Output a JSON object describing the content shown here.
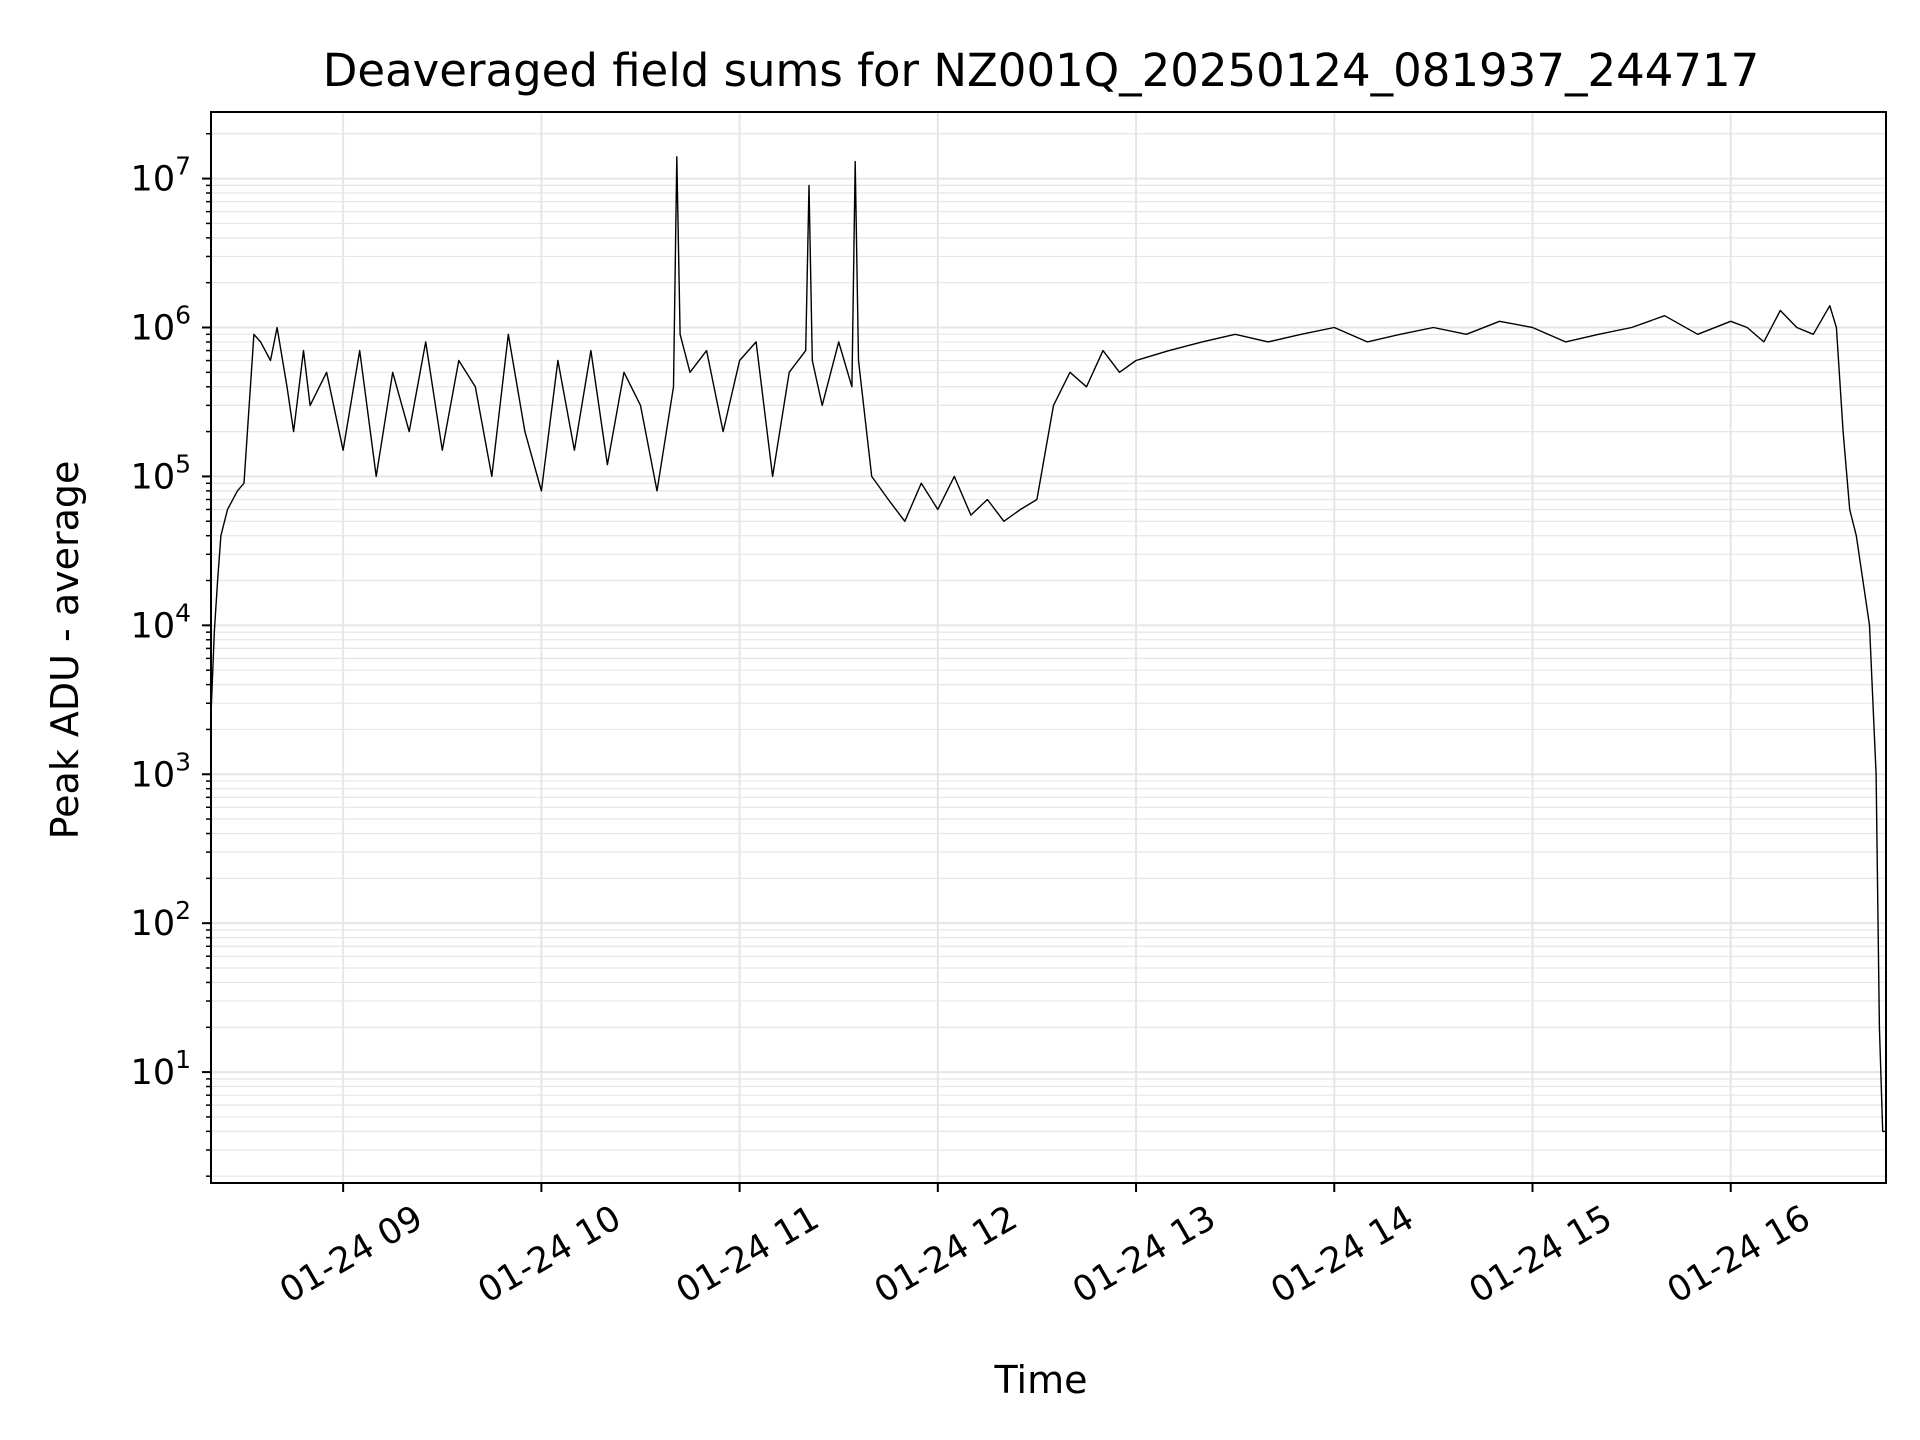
{
  "chart_data": {
    "type": "line",
    "title": "Deaveraged field sums for NZ001Q_20250124_081937_244717",
    "xlabel": "Time",
    "ylabel": "Peak ADU - average",
    "yscale": "log",
    "grid": true,
    "grid_minor": true,
    "line_color": "#000000",
    "grid_color": "#e6e6e6",
    "x_ticks": [
      "01-24 09",
      "01-24 10",
      "01-24 11",
      "01-24 12",
      "01-24 13",
      "01-24 14",
      "01-24 15",
      "01-24 16"
    ],
    "x_tick_values": [
      "2025-01-24 09:00",
      "2025-01-24 10:00",
      "2025-01-24 11:00",
      "2025-01-24 12:00",
      "2025-01-24 13:00",
      "2025-01-24 14:00",
      "2025-01-24 15:00",
      "2025-01-24 16:00"
    ],
    "xlim": [
      "2025-01-24 08:20",
      "2025-01-24 16:47"
    ],
    "y_ticks": [
      {
        "base": "10",
        "exp": "1",
        "value": 10
      },
      {
        "base": "10",
        "exp": "2",
        "value": 100
      },
      {
        "base": "10",
        "exp": "3",
        "value": 1000
      },
      {
        "base": "10",
        "exp": "4",
        "value": 10000
      },
      {
        "base": "10",
        "exp": "5",
        "value": 100000
      },
      {
        "base": "10",
        "exp": "6",
        "value": 1000000
      },
      {
        "base": "10",
        "exp": "7",
        "value": 10000000
      }
    ],
    "ylim": [
      1.8,
      28000000
    ],
    "series": [
      {
        "x": [
          "2025-01-24 08:20",
          "2025-01-24 08:21",
          "2025-01-24 08:22",
          "2025-01-24 08:23",
          "2025-01-24 08:25",
          "2025-01-24 08:28",
          "2025-01-24 08:30",
          "2025-01-24 08:33",
          "2025-01-24 08:35",
          "2025-01-24 08:38",
          "2025-01-24 08:40",
          "2025-01-24 08:43",
          "2025-01-24 08:45",
          "2025-01-24 08:48",
          "2025-01-24 08:50",
          "2025-01-24 08:55",
          "2025-01-24 09:00",
          "2025-01-24 09:05",
          "2025-01-24 09:10",
          "2025-01-24 09:15",
          "2025-01-24 09:20",
          "2025-01-24 09:25",
          "2025-01-24 09:30",
          "2025-01-24 09:35",
          "2025-01-24 09:40",
          "2025-01-24 09:45",
          "2025-01-24 09:50",
          "2025-01-24 09:55",
          "2025-01-24 10:00",
          "2025-01-24 10:05",
          "2025-01-24 10:10",
          "2025-01-24 10:15",
          "2025-01-24 10:20",
          "2025-01-24 10:25",
          "2025-01-24 10:30",
          "2025-01-24 10:35",
          "2025-01-24 10:40",
          "2025-01-24 10:41",
          "2025-01-24 10:42",
          "2025-01-24 10:45",
          "2025-01-24 10:50",
          "2025-01-24 10:55",
          "2025-01-24 11:00",
          "2025-01-24 11:05",
          "2025-01-24 11:10",
          "2025-01-24 11:15",
          "2025-01-24 11:20",
          "2025-01-24 11:21",
          "2025-01-24 11:22",
          "2025-01-24 11:25",
          "2025-01-24 11:30",
          "2025-01-24 11:34",
          "2025-01-24 11:35",
          "2025-01-24 11:36",
          "2025-01-24 11:40",
          "2025-01-24 11:45",
          "2025-01-24 11:50",
          "2025-01-24 11:55",
          "2025-01-24 12:00",
          "2025-01-24 12:05",
          "2025-01-24 12:10",
          "2025-01-24 12:15",
          "2025-01-24 12:20",
          "2025-01-24 12:25",
          "2025-01-24 12:30",
          "2025-01-24 12:35",
          "2025-01-24 12:40",
          "2025-01-24 12:45",
          "2025-01-24 12:50",
          "2025-01-24 12:55",
          "2025-01-24 13:00",
          "2025-01-24 13:10",
          "2025-01-24 13:20",
          "2025-01-24 13:30",
          "2025-01-24 13:40",
          "2025-01-24 13:50",
          "2025-01-24 14:00",
          "2025-01-24 14:10",
          "2025-01-24 14:20",
          "2025-01-24 14:30",
          "2025-01-24 14:40",
          "2025-01-24 14:50",
          "2025-01-24 15:00",
          "2025-01-24 15:10",
          "2025-01-24 15:20",
          "2025-01-24 15:30",
          "2025-01-24 15:40",
          "2025-01-24 15:50",
          "2025-01-24 16:00",
          "2025-01-24 16:05",
          "2025-01-24 16:10",
          "2025-01-24 16:15",
          "2025-01-24 16:20",
          "2025-01-24 16:25",
          "2025-01-24 16:30",
          "2025-01-24 16:32",
          "2025-01-24 16:34",
          "2025-01-24 16:36",
          "2025-01-24 16:38",
          "2025-01-24 16:40",
          "2025-01-24 16:42",
          "2025-01-24 16:44",
          "2025-01-24 16:45",
          "2025-01-24 16:46",
          "2025-01-24 16:47"
        ],
        "y": [
          2500,
          9000,
          20000,
          40000,
          60000,
          80000,
          90000,
          900000,
          800000,
          600000,
          1000000,
          400000,
          200000,
          700000,
          300000,
          500000,
          150000,
          700000,
          100000,
          500000,
          200000,
          800000,
          150000,
          600000,
          400000,
          100000,
          900000,
          200000,
          80000,
          600000,
          150000,
          700000,
          120000,
          500000,
          300000,
          80000,
          400000,
          14000000,
          900000,
          500000,
          700000,
          200000,
          600000,
          800000,
          100000,
          500000,
          700000,
          9000000,
          600000,
          300000,
          800000,
          400000,
          13000000,
          600000,
          100000,
          70000,
          50000,
          90000,
          60000,
          100000,
          55000,
          70000,
          50000,
          60000,
          70000,
          300000,
          500000,
          400000,
          700000,
          500000,
          600000,
          700000,
          800000,
          900000,
          800000,
          900000,
          1000000,
          800000,
          900000,
          1000000,
          900000,
          1100000,
          1000000,
          800000,
          900000,
          1000000,
          1200000,
          900000,
          1100000,
          1000000,
          800000,
          1300000,
          1000000,
          900000,
          1400000,
          1000000,
          200000,
          60000,
          40000,
          20000,
          10000,
          1000,
          20,
          4,
          4
        ]
      }
    ]
  }
}
